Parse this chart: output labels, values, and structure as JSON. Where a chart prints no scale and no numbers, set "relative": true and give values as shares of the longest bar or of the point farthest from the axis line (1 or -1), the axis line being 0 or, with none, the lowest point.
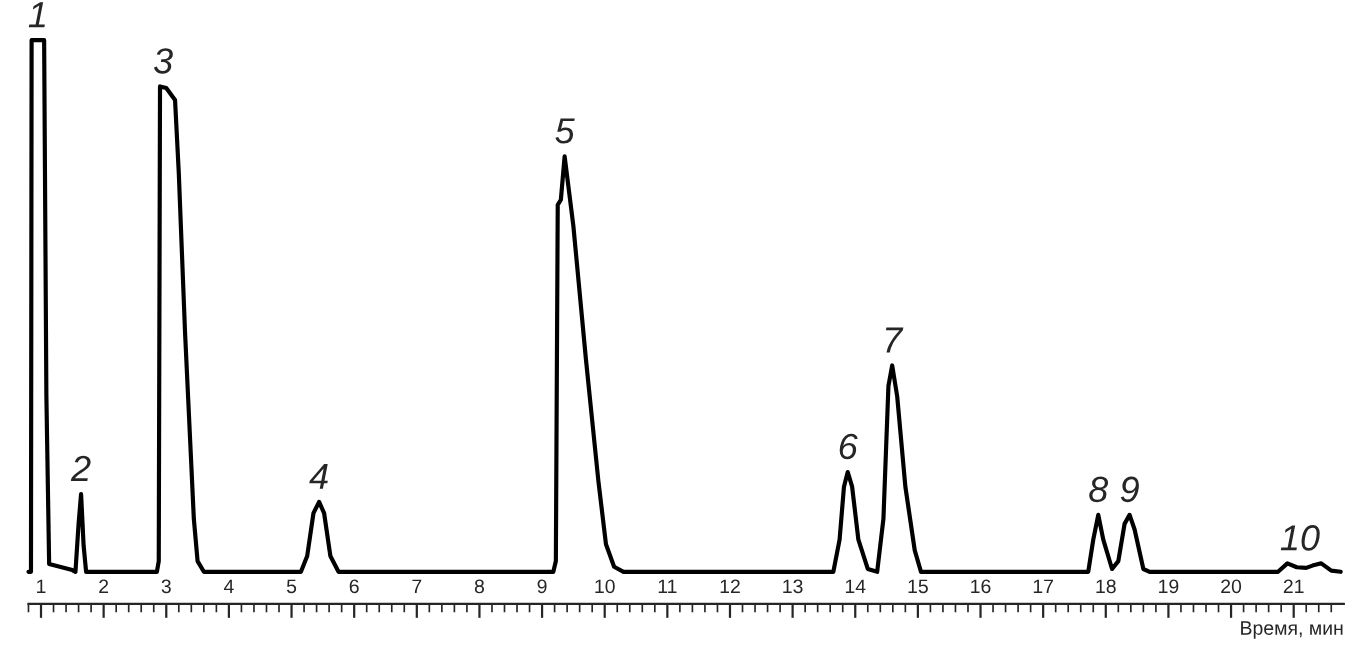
{
  "chart_data": {
    "type": "line",
    "relative": true,
    "xlabel": "Время, мин",
    "series": [
      {
        "color": "#000000",
        "x": [
          0.8,
          0.84,
          0.85,
          1.05,
          1.086,
          1.13,
          1.5,
          1.55,
          1.6,
          1.64,
          1.68,
          1.72,
          2.85,
          2.88,
          2.9,
          3.0,
          3.14,
          3.2,
          3.3,
          3.4,
          3.44,
          3.5,
          3.6,
          5.15,
          5.25,
          5.35,
          5.44,
          5.52,
          5.62,
          5.75,
          9.18,
          9.22,
          9.25,
          9.3,
          9.36,
          9.5,
          9.7,
          9.9,
          10.02,
          10.15,
          10.3,
          13.65,
          13.75,
          13.82,
          13.88,
          13.95,
          14.05,
          14.2,
          14.35,
          14.45,
          14.53,
          14.59,
          14.67,
          14.8,
          14.95,
          15.05,
          17.72,
          17.8,
          17.88,
          17.96,
          18.1,
          18.2,
          18.3,
          18.38,
          18.46,
          18.6,
          18.7,
          20.75,
          20.9,
          21.05,
          21.2,
          21.3,
          21.44,
          21.6,
          21.75
        ],
        "values": [
          0.057,
          0.057,
          1.0,
          1.0,
          0.368,
          0.071,
          0.06,
          0.057,
          0.142,
          0.195,
          0.104,
          0.057,
          0.057,
          0.076,
          0.918,
          0.915,
          0.894,
          0.764,
          0.481,
          0.246,
          0.151,
          0.076,
          0.057,
          0.057,
          0.085,
          0.161,
          0.181,
          0.161,
          0.085,
          0.057,
          0.057,
          0.076,
          0.708,
          0.717,
          0.794,
          0.67,
          0.434,
          0.217,
          0.106,
          0.066,
          0.057,
          0.057,
          0.114,
          0.208,
          0.234,
          0.208,
          0.114,
          0.062,
          0.057,
          0.151,
          0.387,
          0.423,
          0.368,
          0.208,
          0.095,
          0.057,
          0.057,
          0.114,
          0.158,
          0.114,
          0.062,
          0.076,
          0.142,
          0.158,
          0.132,
          0.062,
          0.057,
          0.057,
          0.072,
          0.065,
          0.064,
          0.068,
          0.072,
          0.059,
          0.057
        ]
      }
    ],
    "xlim": [
      0.8,
      21.8
    ],
    "xticks": [
      1,
      2,
      3,
      4,
      5,
      6,
      7,
      8,
      9,
      10,
      11,
      12,
      13,
      14,
      15,
      16,
      17,
      18,
      19,
      20,
      21,
      {
        "value": 0.8,
        "label": null
      },
      {
        "value": 1.2,
        "label": null
      },
      {
        "value": 1.4,
        "label": null
      },
      {
        "value": 1.6,
        "label": null
      },
      {
        "value": 1.8,
        "label": null
      },
      {
        "value": 2.2,
        "label": null
      },
      {
        "value": 2.4,
        "label": null
      },
      {
        "value": 2.6,
        "label": null
      },
      {
        "value": 2.8,
        "label": null
      },
      {
        "value": 3.2,
        "label": null
      },
      {
        "value": 3.4,
        "label": null
      },
      {
        "value": 3.6,
        "label": null
      },
      {
        "value": 3.8,
        "label": null
      },
      {
        "value": 4.2,
        "label": null
      },
      {
        "value": 4.4,
        "label": null
      },
      {
        "value": 4.6,
        "label": null
      },
      {
        "value": 4.8,
        "label": null
      },
      {
        "value": 5.2,
        "label": null
      },
      {
        "value": 5.4,
        "label": null
      },
      {
        "value": 5.6,
        "label": null
      },
      {
        "value": 5.8,
        "label": null
      },
      {
        "value": 6.2,
        "label": null
      },
      {
        "value": 6.4,
        "label": null
      },
      {
        "value": 6.6,
        "label": null
      },
      {
        "value": 6.8,
        "label": null
      },
      {
        "value": 7.2,
        "label": null
      },
      {
        "value": 7.4,
        "label": null
      },
      {
        "value": 7.6,
        "label": null
      },
      {
        "value": 7.8,
        "label": null
      },
      {
        "value": 8.2,
        "label": null
      },
      {
        "value": 8.4,
        "label": null
      },
      {
        "value": 8.6,
        "label": null
      },
      {
        "value": 8.8,
        "label": null
      },
      {
        "value": 9.2,
        "label": null
      },
      {
        "value": 9.4,
        "label": null
      },
      {
        "value": 9.6,
        "label": null
      },
      {
        "value": 9.8,
        "label": null
      },
      {
        "value": 10.2,
        "label": null
      },
      {
        "value": 10.4,
        "label": null
      },
      {
        "value": 10.6,
        "label": null
      },
      {
        "value": 10.8,
        "label": null
      },
      {
        "value": 11.2,
        "label": null
      },
      {
        "value": 11.4,
        "label": null
      },
      {
        "value": 11.6,
        "label": null
      },
      {
        "value": 11.8,
        "label": null
      },
      {
        "value": 12.2,
        "label": null
      },
      {
        "value": 12.4,
        "label": null
      },
      {
        "value": 12.6,
        "label": null
      },
      {
        "value": 12.8,
        "label": null
      },
      {
        "value": 13.2,
        "label": null
      },
      {
        "value": 13.4,
        "label": null
      },
      {
        "value": 13.6,
        "label": null
      },
      {
        "value": 13.8,
        "label": null
      },
      {
        "value": 14.2,
        "label": null
      },
      {
        "value": 14.4,
        "label": null
      },
      {
        "value": 14.6,
        "label": null
      },
      {
        "value": 14.8,
        "label": null
      },
      {
        "value": 15.2,
        "label": null
      },
      {
        "value": 15.4,
        "label": null
      },
      {
        "value": 15.6,
        "label": null
      },
      {
        "value": 15.8,
        "label": null
      },
      {
        "value": 16.2,
        "label": null
      },
      {
        "value": 16.4,
        "label": null
      },
      {
        "value": 16.6,
        "label": null
      },
      {
        "value": 16.8,
        "label": null
      },
      {
        "value": 17.2,
        "label": null
      },
      {
        "value": 17.4,
        "label": null
      },
      {
        "value": 17.6,
        "label": null
      },
      {
        "value": 17.8,
        "label": null
      },
      {
        "value": 18.2,
        "label": null
      },
      {
        "value": 18.4,
        "label": null
      },
      {
        "value": 18.6,
        "label": null
      },
      {
        "value": 18.8,
        "label": null
      },
      {
        "value": 19.2,
        "label": null
      },
      {
        "value": 19.4,
        "label": null
      },
      {
        "value": 19.6,
        "label": null
      },
      {
        "value": 19.8,
        "label": null
      },
      {
        "value": 20.2,
        "label": null
      },
      {
        "value": 20.4,
        "label": null
      },
      {
        "value": 20.6,
        "label": null
      },
      {
        "value": 20.8,
        "label": null
      },
      {
        "value": 21.2,
        "label": null
      },
      {
        "value": 21.4,
        "label": null
      },
      {
        "value": 21.6,
        "label": null
      }
    ],
    "tick_labels": "x",
    "grid": false,
    "legend": false,
    "marker": "none",
    "line_style": "solid",
    "annotations": [
      {
        "text": "1",
        "x": 0.95,
        "y": 1.0
      },
      {
        "text": "2",
        "x": 1.64,
        "y": 0.195
      },
      {
        "text": "3",
        "x": 2.95,
        "y": 0.918
      },
      {
        "text": "4",
        "x": 5.44,
        "y": 0.181
      },
      {
        "text": "5",
        "x": 9.36,
        "y": 0.794
      },
      {
        "text": "6",
        "x": 13.88,
        "y": 0.234
      },
      {
        "text": "7",
        "x": 14.59,
        "y": 0.423
      },
      {
        "text": "8",
        "x": 17.88,
        "y": 0.158
      },
      {
        "text": "9",
        "x": 18.38,
        "y": 0.158
      },
      {
        "text": "10",
        "x": 21.1,
        "y": 0.072
      }
    ]
  }
}
